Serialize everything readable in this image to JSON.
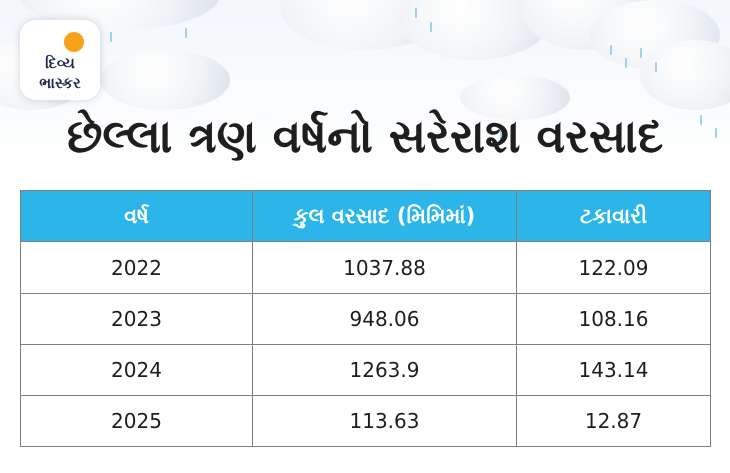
{
  "brand": {
    "logo_line1": "દિવ્ય",
    "logo_line2": "ભાસ્કર",
    "accent_color": "#2bb5e8",
    "sun_color": "#f7a31a"
  },
  "title": "છેલ્લા ત્રણ વર્ષનો સરેરાશ વરસાદ",
  "table": {
    "headers": [
      "વર્ષ",
      "કુલ વરસાદ (મિમિમાં)",
      "ટકાવારી"
    ],
    "rows": [
      [
        "2022",
        "1037.88",
        "122.09"
      ],
      [
        "2023",
        "948.06",
        "108.16"
      ],
      [
        "2024",
        "1263.9",
        "143.14"
      ],
      [
        "2025",
        "113.63",
        "12.87"
      ]
    ]
  }
}
